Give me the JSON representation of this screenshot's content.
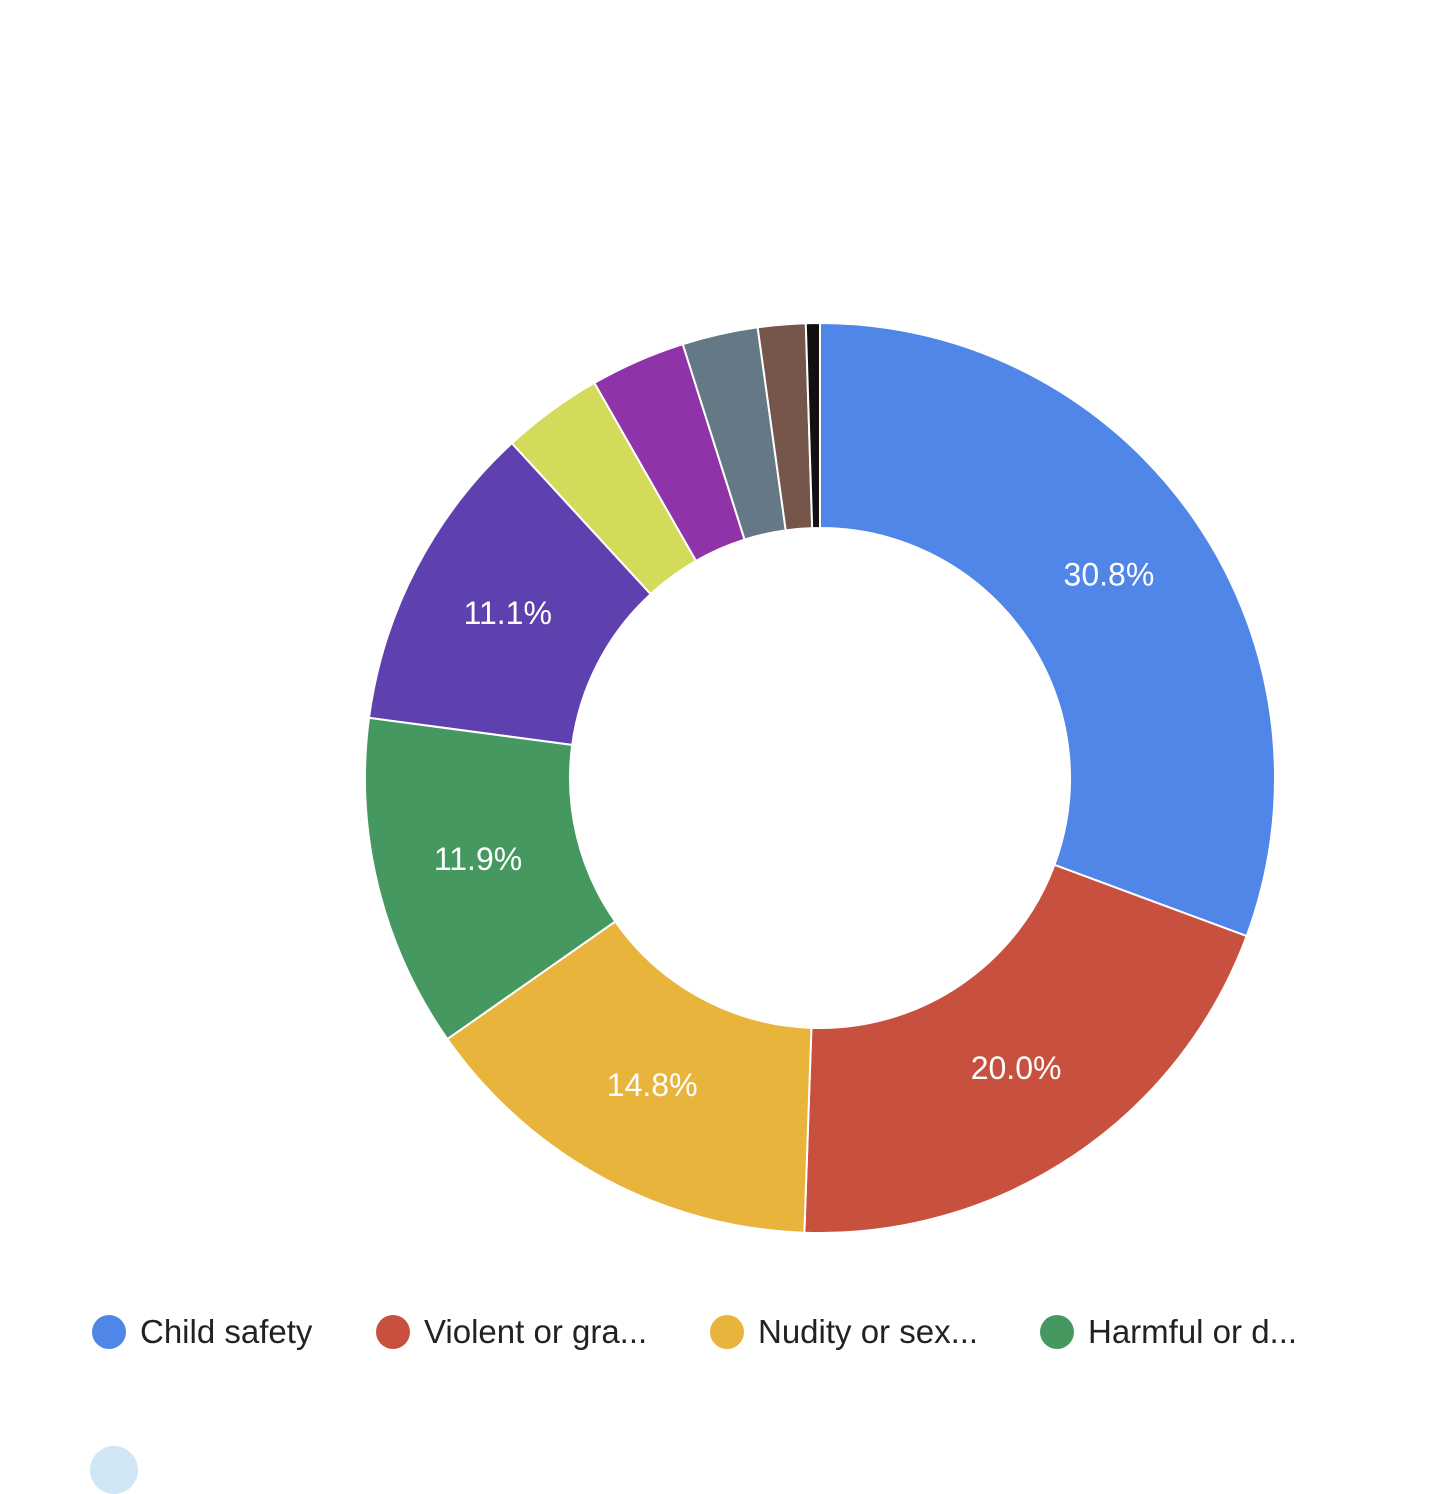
{
  "chart_data": {
    "type": "pie",
    "donut": true,
    "start_angle_deg": 0,
    "direction": "clockwise",
    "series": [
      {
        "name": "Child safety",
        "value": 30.8,
        "color": "#4F86E8",
        "label": "30.8%"
      },
      {
        "name": "Violent or gra...",
        "value": 20.0,
        "color": "#C8503E",
        "label": "20.0%"
      },
      {
        "name": "Nudity or sex...",
        "value": 14.8,
        "color": "#E8B43C",
        "label": "14.8%"
      },
      {
        "name": "Harmful or d...",
        "value": 11.9,
        "color": "#449860",
        "label": "11.9%"
      },
      {
        "name": "",
        "value": 11.1,
        "color": "#5E41AE",
        "label": "11.1%"
      },
      {
        "name": "",
        "value": 3.6,
        "color": "#D4DB5A",
        "label": ""
      },
      {
        "name": "",
        "value": 3.4,
        "color": "#8E34A8",
        "label": ""
      },
      {
        "name": "",
        "value": 2.7,
        "color": "#657886",
        "label": ""
      },
      {
        "name": "",
        "value": 1.7,
        "color": "#76564A",
        "label": ""
      },
      {
        "name": "",
        "value": 0.5,
        "color": "#111111",
        "label": ""
      }
    ],
    "legend": {
      "placement": "bottom",
      "entries": [
        "Child safety",
        "Violent or gra...",
        "Nudity or sex...",
        "Harmful or d..."
      ]
    }
  }
}
